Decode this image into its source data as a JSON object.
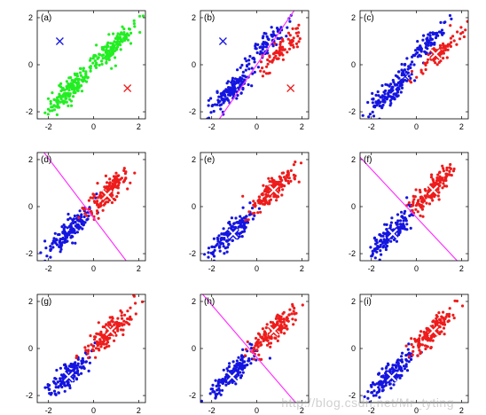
{
  "figure": {
    "watermark": "http://blog.csdn.net/Mr_tyting",
    "colors": {
      "green": "#22ee22",
      "blue": "#1515e0",
      "red": "#ee1c1c",
      "line": "#ff33ff",
      "axis": "#000000"
    }
  },
  "chart_data": [
    {
      "type": "scatter",
      "label": "(a)",
      "xlim": [
        -2.5,
        2.3
      ],
      "ylim": [
        -2.3,
        2.3
      ],
      "xticks": [
        "-2",
        "0",
        "2"
      ],
      "yticks": [
        "2",
        "0",
        "-2"
      ],
      "clusters": [
        {
          "color": "green",
          "center": [
            -1.1,
            -1.1
          ]
        },
        {
          "color": "green",
          "center": [
            0.8,
            0.7
          ]
        }
      ],
      "centroids": [
        {
          "color": "blue",
          "x": -1.5,
          "y": 1.0,
          "style": "x"
        },
        {
          "color": "red",
          "x": 1.5,
          "y": -1.0,
          "style": "x"
        }
      ],
      "boundary": null
    },
    {
      "type": "scatter",
      "label": "(b)",
      "xlim": [
        -2.5,
        2.3
      ],
      "ylim": [
        -2.3,
        2.3
      ],
      "xticks": [
        "-2",
        "0",
        "2"
      ],
      "yticks": [
        "2",
        "0",
        "-2"
      ],
      "clusters": [
        {
          "color": "blue",
          "center": [
            -1.1,
            -1.1
          ]
        },
        {
          "color": "blue",
          "center": [
            0.45,
            0.85
          ]
        },
        {
          "color": "red",
          "center": [
            1.05,
            0.55
          ]
        }
      ],
      "centroids": [
        {
          "color": "blue",
          "x": -1.5,
          "y": 1.0,
          "style": "x"
        },
        {
          "color": "red",
          "x": 1.5,
          "y": -1.0,
          "style": "x"
        }
      ],
      "boundary": {
        "x": [
          -1.8,
          1.8
        ],
        "y": [
          -2.5,
          2.5
        ]
      }
    },
    {
      "type": "scatter",
      "label": "(c)",
      "xlim": [
        -2.5,
        2.3
      ],
      "ylim": [
        -2.3,
        2.3
      ],
      "xticks": [
        "-2",
        "0",
        "2"
      ],
      "yticks": [
        "2",
        "0",
        "-2"
      ],
      "clusters": [
        {
          "color": "blue",
          "center": [
            -1.1,
            -1.1
          ]
        },
        {
          "color": "blue",
          "center": [
            0.45,
            0.85
          ]
        },
        {
          "color": "red",
          "center": [
            1.05,
            0.55
          ]
        }
      ],
      "centroids": [
        {
          "color": "blue",
          "x": -0.5,
          "y": -0.5,
          "style": "x"
        },
        {
          "color": "red",
          "x": 0.85,
          "y": 0.45,
          "style": "cross"
        }
      ],
      "boundary": null
    },
    {
      "type": "scatter",
      "label": "(d)",
      "xlim": [
        -2.5,
        2.3
      ],
      "ylim": [
        -2.3,
        2.3
      ],
      "xticks": [
        "-2",
        "0",
        "2"
      ],
      "yticks": [
        "2",
        "0",
        "-2"
      ],
      "clusters": [
        {
          "color": "blue",
          "center": [
            -1.1,
            -1.1
          ]
        },
        {
          "color": "red",
          "center": [
            0.7,
            0.7
          ]
        }
      ],
      "centroids": [
        {
          "color": "blue",
          "x": -0.9,
          "y": -0.6,
          "style": "x"
        },
        {
          "color": "red",
          "x": 0.6,
          "y": 0.5,
          "style": "cross"
        }
      ],
      "boundary": {
        "x": [
          -2.2,
          1.6
        ],
        "y": [
          2.3,
          -2.5
        ]
      }
    },
    {
      "type": "scatter",
      "label": "(e)",
      "xlim": [
        -2.5,
        2.3
      ],
      "ylim": [
        -2.3,
        2.3
      ],
      "xticks": [
        "-2",
        "0",
        "2"
      ],
      "yticks": [
        "2",
        "0",
        "-2"
      ],
      "clusters": [
        {
          "color": "blue",
          "center": [
            -1.1,
            -1.1
          ]
        },
        {
          "color": "red",
          "center": [
            0.7,
            0.7
          ]
        }
      ],
      "centroids": [
        {
          "color": "blue",
          "x": -1.05,
          "y": -1.15,
          "style": "cross"
        },
        {
          "color": "red",
          "x": 0.75,
          "y": 0.7,
          "style": "cross"
        }
      ],
      "boundary": null
    },
    {
      "type": "scatter",
      "label": "(f)",
      "xlim": [
        -2.5,
        2.3
      ],
      "ylim": [
        -2.3,
        2.3
      ],
      "xticks": [
        "-2",
        "0",
        "2"
      ],
      "yticks": [
        "2",
        "0",
        "-2"
      ],
      "clusters": [
        {
          "color": "blue",
          "center": [
            -1.1,
            -1.1
          ]
        },
        {
          "color": "red",
          "center": [
            0.7,
            0.7
          ]
        }
      ],
      "centroids": [
        {
          "color": "blue",
          "x": -1.05,
          "y": -1.15,
          "style": "cross"
        },
        {
          "color": "red",
          "x": 0.75,
          "y": 0.7,
          "style": "cross"
        }
      ],
      "boundary": {
        "x": [
          -2.5,
          2.0
        ],
        "y": [
          2.1,
          -2.5
        ]
      }
    },
    {
      "type": "scatter",
      "label": "(g)",
      "xlim": [
        -2.5,
        2.3
      ],
      "ylim": [
        -2.3,
        2.3
      ],
      "xticks": [
        "-2",
        "0",
        "2"
      ],
      "yticks": [
        "2",
        "0",
        "-2"
      ],
      "clusters": [
        {
          "color": "blue",
          "center": [
            -1.1,
            -1.1
          ]
        },
        {
          "color": "red",
          "center": [
            0.7,
            0.7
          ]
        }
      ],
      "centroids": [
        {
          "color": "blue",
          "x": -1.1,
          "y": -1.2,
          "style": "cross"
        },
        {
          "color": "red",
          "x": 0.75,
          "y": 0.75,
          "style": "cross"
        }
      ],
      "boundary": null
    },
    {
      "type": "scatter",
      "label": "(h)",
      "xlim": [
        -2.5,
        2.3
      ],
      "ylim": [
        -2.3,
        2.3
      ],
      "xticks": [
        "-2",
        "0",
        "2"
      ],
      "yticks": [
        "2",
        "0",
        "-2"
      ],
      "clusters": [
        {
          "color": "blue",
          "center": [
            -1.1,
            -1.1
          ]
        },
        {
          "color": "red",
          "center": [
            0.7,
            0.7
          ]
        }
      ],
      "centroids": [
        {
          "color": "blue",
          "x": -1.1,
          "y": -1.2,
          "style": "cross"
        },
        {
          "color": "red",
          "x": 0.75,
          "y": 0.75,
          "style": "cross"
        }
      ],
      "boundary": {
        "x": [
          -2.4,
          1.9
        ],
        "y": [
          2.3,
          -2.5
        ]
      }
    },
    {
      "type": "scatter",
      "label": "(i)",
      "xlim": [
        -2.5,
        2.3
      ],
      "ylim": [
        -2.3,
        2.3
      ],
      "xticks": [
        "-2",
        "0",
        "2"
      ],
      "yticks": [
        "2",
        "0",
        "-2"
      ],
      "clusters": [
        {
          "color": "blue",
          "center": [
            -1.1,
            -1.1
          ]
        },
        {
          "color": "red",
          "center": [
            0.7,
            0.7
          ]
        }
      ],
      "centroids": [
        {
          "color": "blue",
          "x": -1.1,
          "y": -1.2,
          "style": "cross"
        },
        {
          "color": "red",
          "x": 0.75,
          "y": 0.75,
          "style": "cross"
        }
      ],
      "boundary": null
    }
  ]
}
